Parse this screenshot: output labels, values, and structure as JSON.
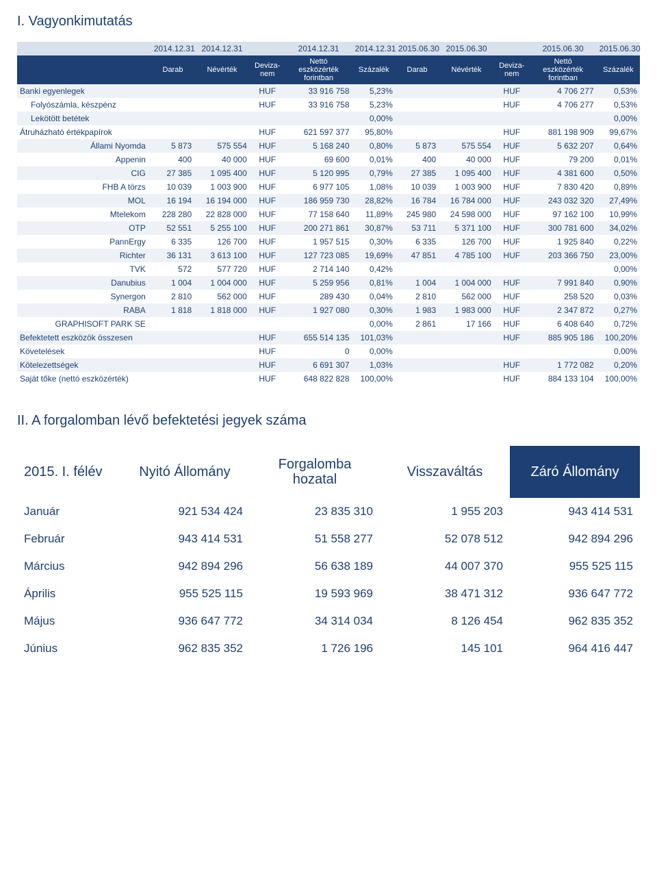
{
  "section1": {
    "title": "I. Vagyonkimutatás",
    "dates": [
      "2014.12.31",
      "2014.12.31",
      "",
      "2014.12.31",
      "2014.12.31",
      "2015.06.30",
      "2015.06.30",
      "",
      "2015.06.30",
      "2015.06.30"
    ],
    "labels": [
      "Darab",
      "Névérték",
      "Deviza-nem",
      "Nettó eszközérték forintban",
      "Százalék",
      "Darab",
      "Névérték",
      "Deviza-nem",
      "Nettó eszközérték forintban",
      "Százalék"
    ],
    "rows": [
      {
        "name": "Banki egyenlegek",
        "cells": [
          "",
          "",
          "HUF",
          "33 916 758",
          "5,23%",
          "",
          "",
          "HUF",
          "4 706 277",
          "0,53%"
        ],
        "band": true,
        "cls": "left"
      },
      {
        "name": "Folyószámla, készpénz",
        "cells": [
          "",
          "",
          "HUF",
          "33 916 758",
          "5,23%",
          "",
          "",
          "HUF",
          "4 706 277",
          "0,53%"
        ],
        "band": false,
        "cls": "indent1"
      },
      {
        "name": "Lekötött betétek",
        "cells": [
          "",
          "",
          "",
          "",
          "0,00%",
          "",
          "",
          "",
          "",
          "0,00%"
        ],
        "band": true,
        "cls": "indent1"
      },
      {
        "name": "Átruházható értékpapírok",
        "cells": [
          "",
          "",
          "HUF",
          "621 597 377",
          "95,80%",
          "",
          "",
          "HUF",
          "881 198 909",
          "99,67%"
        ],
        "band": false,
        "cls": "left"
      },
      {
        "name": "Állami Nyomda",
        "cells": [
          "5 873",
          "575 554",
          "HUF",
          "5 168 240",
          "0,80%",
          "5 873",
          "575 554",
          "HUF",
          "5 632 207",
          "0,64%"
        ],
        "band": true,
        "cls": "label"
      },
      {
        "name": "Appenin",
        "cells": [
          "400",
          "40 000",
          "HUF",
          "69 600",
          "0,01%",
          "400",
          "40 000",
          "HUF",
          "79 200",
          "0,01%"
        ],
        "band": false,
        "cls": "label"
      },
      {
        "name": "CIG",
        "cells": [
          "27 385",
          "1 095 400",
          "HUF",
          "5 120 995",
          "0,79%",
          "27 385",
          "1 095 400",
          "HUF",
          "4 381 600",
          "0,50%"
        ],
        "band": true,
        "cls": "label"
      },
      {
        "name": "FHB A törzs",
        "cells": [
          "10 039",
          "1 003 900",
          "HUF",
          "6 977 105",
          "1,08%",
          "10 039",
          "1 003 900",
          "HUF",
          "7 830 420",
          "0,89%"
        ],
        "band": false,
        "cls": "label"
      },
      {
        "name": "MOL",
        "cells": [
          "16 194",
          "16 194 000",
          "HUF",
          "186 959 730",
          "28,82%",
          "16 784",
          "16 784 000",
          "HUF",
          "243 032 320",
          "27,49%"
        ],
        "band": true,
        "cls": "label"
      },
      {
        "name": "Mtelekom",
        "cells": [
          "228 280",
          "22 828 000",
          "HUF",
          "77 158 640",
          "11,89%",
          "245 980",
          "24 598 000",
          "HUF",
          "97 162 100",
          "10,99%"
        ],
        "band": false,
        "cls": "label"
      },
      {
        "name": "OTP",
        "cells": [
          "52 551",
          "5 255 100",
          "HUF",
          "200 271 861",
          "30,87%",
          "53 711",
          "5 371 100",
          "HUF",
          "300 781 600",
          "34,02%"
        ],
        "band": true,
        "cls": "label"
      },
      {
        "name": "PannErgy",
        "cells": [
          "6 335",
          "126 700",
          "HUF",
          "1 957 515",
          "0,30%",
          "6 335",
          "126 700",
          "HUF",
          "1 925 840",
          "0,22%"
        ],
        "band": false,
        "cls": "label"
      },
      {
        "name": "Richter",
        "cells": [
          "36 131",
          "3 613 100",
          "HUF",
          "127 723 085",
          "19,69%",
          "47 851",
          "4 785 100",
          "HUF",
          "203 366 750",
          "23,00%"
        ],
        "band": true,
        "cls": "label"
      },
      {
        "name": "TVK",
        "cells": [
          "572",
          "577 720",
          "HUF",
          "2 714 140",
          "0,42%",
          "",
          "",
          "",
          "",
          "0,00%"
        ],
        "band": false,
        "cls": "label"
      },
      {
        "name": "Danubius",
        "cells": [
          "1 004",
          "1 004 000",
          "HUF",
          "5 259 956",
          "0,81%",
          "1 004",
          "1 004 000",
          "HUF",
          "7 991 840",
          "0,90%"
        ],
        "band": true,
        "cls": "label"
      },
      {
        "name": "Synergon",
        "cells": [
          "2 810",
          "562 000",
          "HUF",
          "289 430",
          "0,04%",
          "2 810",
          "562 000",
          "HUF",
          "258 520",
          "0,03%"
        ],
        "band": false,
        "cls": "label"
      },
      {
        "name": "RABA",
        "cells": [
          "1 818",
          "1 818 000",
          "HUF",
          "1 927 080",
          "0,30%",
          "1 983",
          "1 983 000",
          "HUF",
          "2 347 872",
          "0,27%"
        ],
        "band": true,
        "cls": "label"
      },
      {
        "name": "GRAPHISOFT PARK SE",
        "cells": [
          "",
          "",
          "",
          "",
          "0,00%",
          "2 861",
          "17 166",
          "HUF",
          "6 408 640",
          "0,72%"
        ],
        "band": false,
        "cls": "label"
      },
      {
        "name": "Befektetett eszközök összesen",
        "cells": [
          "",
          "",
          "HUF",
          "655 514 135",
          "101,03%",
          "",
          "",
          "HUF",
          "885 905 186",
          "100,20%"
        ],
        "band": true,
        "cls": "left"
      },
      {
        "name": "Követelések",
        "cells": [
          "",
          "",
          "HUF",
          "0",
          "0,00%",
          "",
          "",
          "",
          "",
          "0,00%"
        ],
        "band": false,
        "cls": "left"
      },
      {
        "name": "Kötelezettségek",
        "cells": [
          "",
          "",
          "HUF",
          "6 691 307",
          "1,03%",
          "",
          "",
          "HUF",
          "1 772 082",
          "0,20%"
        ],
        "band": true,
        "cls": "left"
      },
      {
        "name": "Saját tőke (nettó eszközérték)",
        "cells": [
          "",
          "",
          "HUF",
          "648 822 828",
          "100,00%",
          "",
          "",
          "HUF",
          "884 133 104",
          "100,00%"
        ],
        "band": false,
        "cls": "left"
      }
    ]
  },
  "section2": {
    "title": "II. A forgalomban lévő befektetési jegyek száma",
    "headers": [
      "2015. I. félév",
      "Nyitó Állomány",
      "Forgalomba hozatal",
      "Visszaváltás",
      "Záró Állomány"
    ],
    "rows": [
      {
        "m": "Január",
        "c": [
          "921 534 424",
          "23 835 310",
          "1 955 203",
          "943 414 531"
        ]
      },
      {
        "m": "Február",
        "c": [
          "943 414 531",
          "51 558 277",
          "52 078 512",
          "942 894 296"
        ]
      },
      {
        "m": "Március",
        "c": [
          "942 894 296",
          "56 638 189",
          "44 007 370",
          "955 525 115"
        ]
      },
      {
        "m": "Április",
        "c": [
          "955 525 115",
          "19 593 969",
          "38 471 312",
          "936 647 772"
        ]
      },
      {
        "m": "Május",
        "c": [
          "936 647 772",
          "34 314 034",
          "8 126 454",
          "962 835 352"
        ]
      },
      {
        "m": "Június",
        "c": [
          "962 835 352",
          "1 726 196",
          "145 101",
          "964 416 447"
        ]
      }
    ]
  },
  "colors": {
    "brand_navy": "#1d3f72",
    "band_bg": "#eef2f7",
    "header_band": "#d9e1ec"
  }
}
